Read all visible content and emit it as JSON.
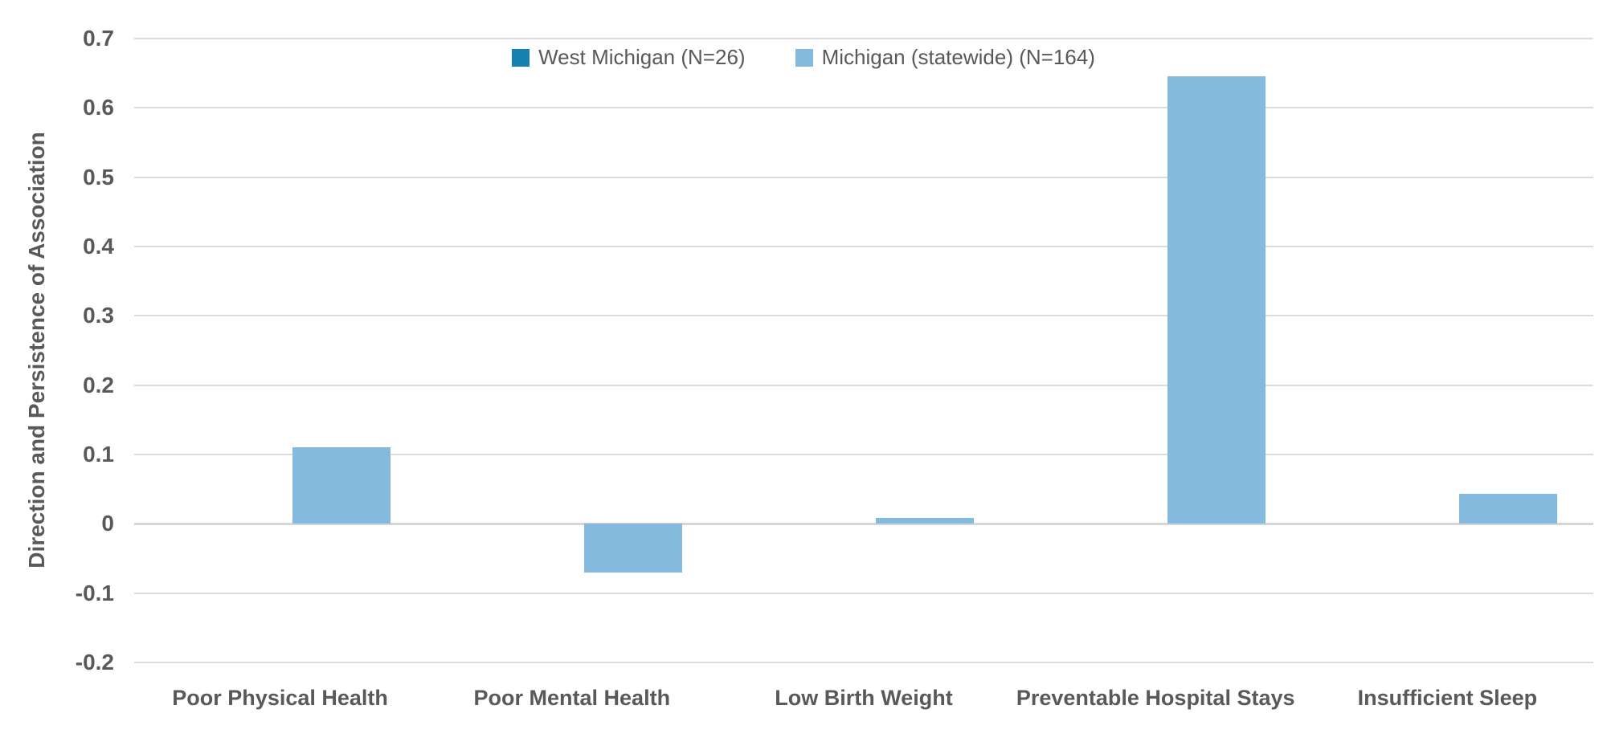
{
  "chart_data": {
    "type": "bar",
    "title": "",
    "ylabel": "Direction and Persistence of Association",
    "xlabel": "",
    "categories": [
      "Poor Physical Health",
      "Poor Mental Health",
      "Low Birth Weight",
      "Preventable Hospital Stays",
      "Insufficient Sleep"
    ],
    "series": [
      {
        "name": "West Michigan (N=26)",
        "color": "#1581B1",
        "values": [
          0,
          0,
          0,
          0,
          0
        ]
      },
      {
        "name": "Michigan (statewide) (N=164)",
        "color": "#85BADF",
        "values": [
          0.11,
          -0.07,
          0.008,
          0.645,
          0.043
        ]
      }
    ],
    "ylim": [
      -0.2,
      0.7
    ],
    "ytick_labels": [
      "0.7",
      "0.6",
      "0.5",
      "0.4",
      "0.3",
      "0.2",
      "0.1",
      "0",
      "-0.1",
      "-0.2"
    ],
    "grid": true,
    "legend_position": "top-center",
    "colors": {
      "text": "#595959",
      "gridline": "#DCDCDC",
      "axis_line": "#D6D6D6",
      "background": "#FFFFFF"
    }
  }
}
